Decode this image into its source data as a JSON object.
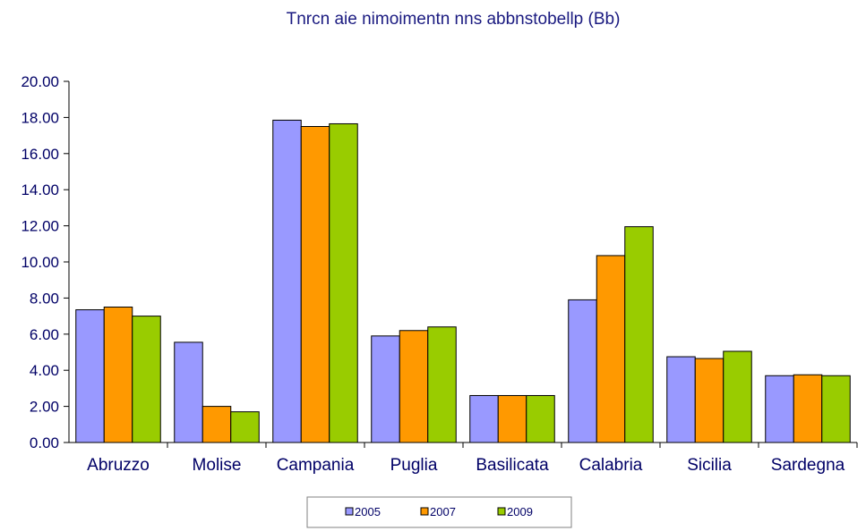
{
  "chart_data": {
    "type": "bar",
    "title": "Tnrcn aie nimoimentn nns abbnstobellp (Bb)",
    "categories": [
      "Abruzzo",
      "Molise",
      "Campania",
      "Puglia",
      "Basilicata",
      "Calabria",
      "Sicilia",
      "Sardegna"
    ],
    "series": [
      {
        "name": "2005",
        "color": "#9999ff",
        "values": [
          7.35,
          5.55,
          17.85,
          5.9,
          2.6,
          7.9,
          4.75,
          3.7
        ]
      },
      {
        "name": "2007",
        "color": "#ff9900",
        "values": [
          7.5,
          2.0,
          17.5,
          6.2,
          2.6,
          10.35,
          4.65,
          3.75
        ]
      },
      {
        "name": "2009",
        "color": "#99cc00",
        "values": [
          7.0,
          1.7,
          17.65,
          6.4,
          2.6,
          11.95,
          5.05,
          3.7
        ]
      }
    ],
    "yticks": [
      "0.00",
      "2.00",
      "4.00",
      "6.00",
      "8.00",
      "10.00",
      "12.00",
      "14.00",
      "16.00",
      "18.00",
      "20.00"
    ],
    "ylim": [
      0,
      20
    ],
    "xlabel": "",
    "ylabel": "",
    "grid": false,
    "legend_position": "bottom"
  }
}
